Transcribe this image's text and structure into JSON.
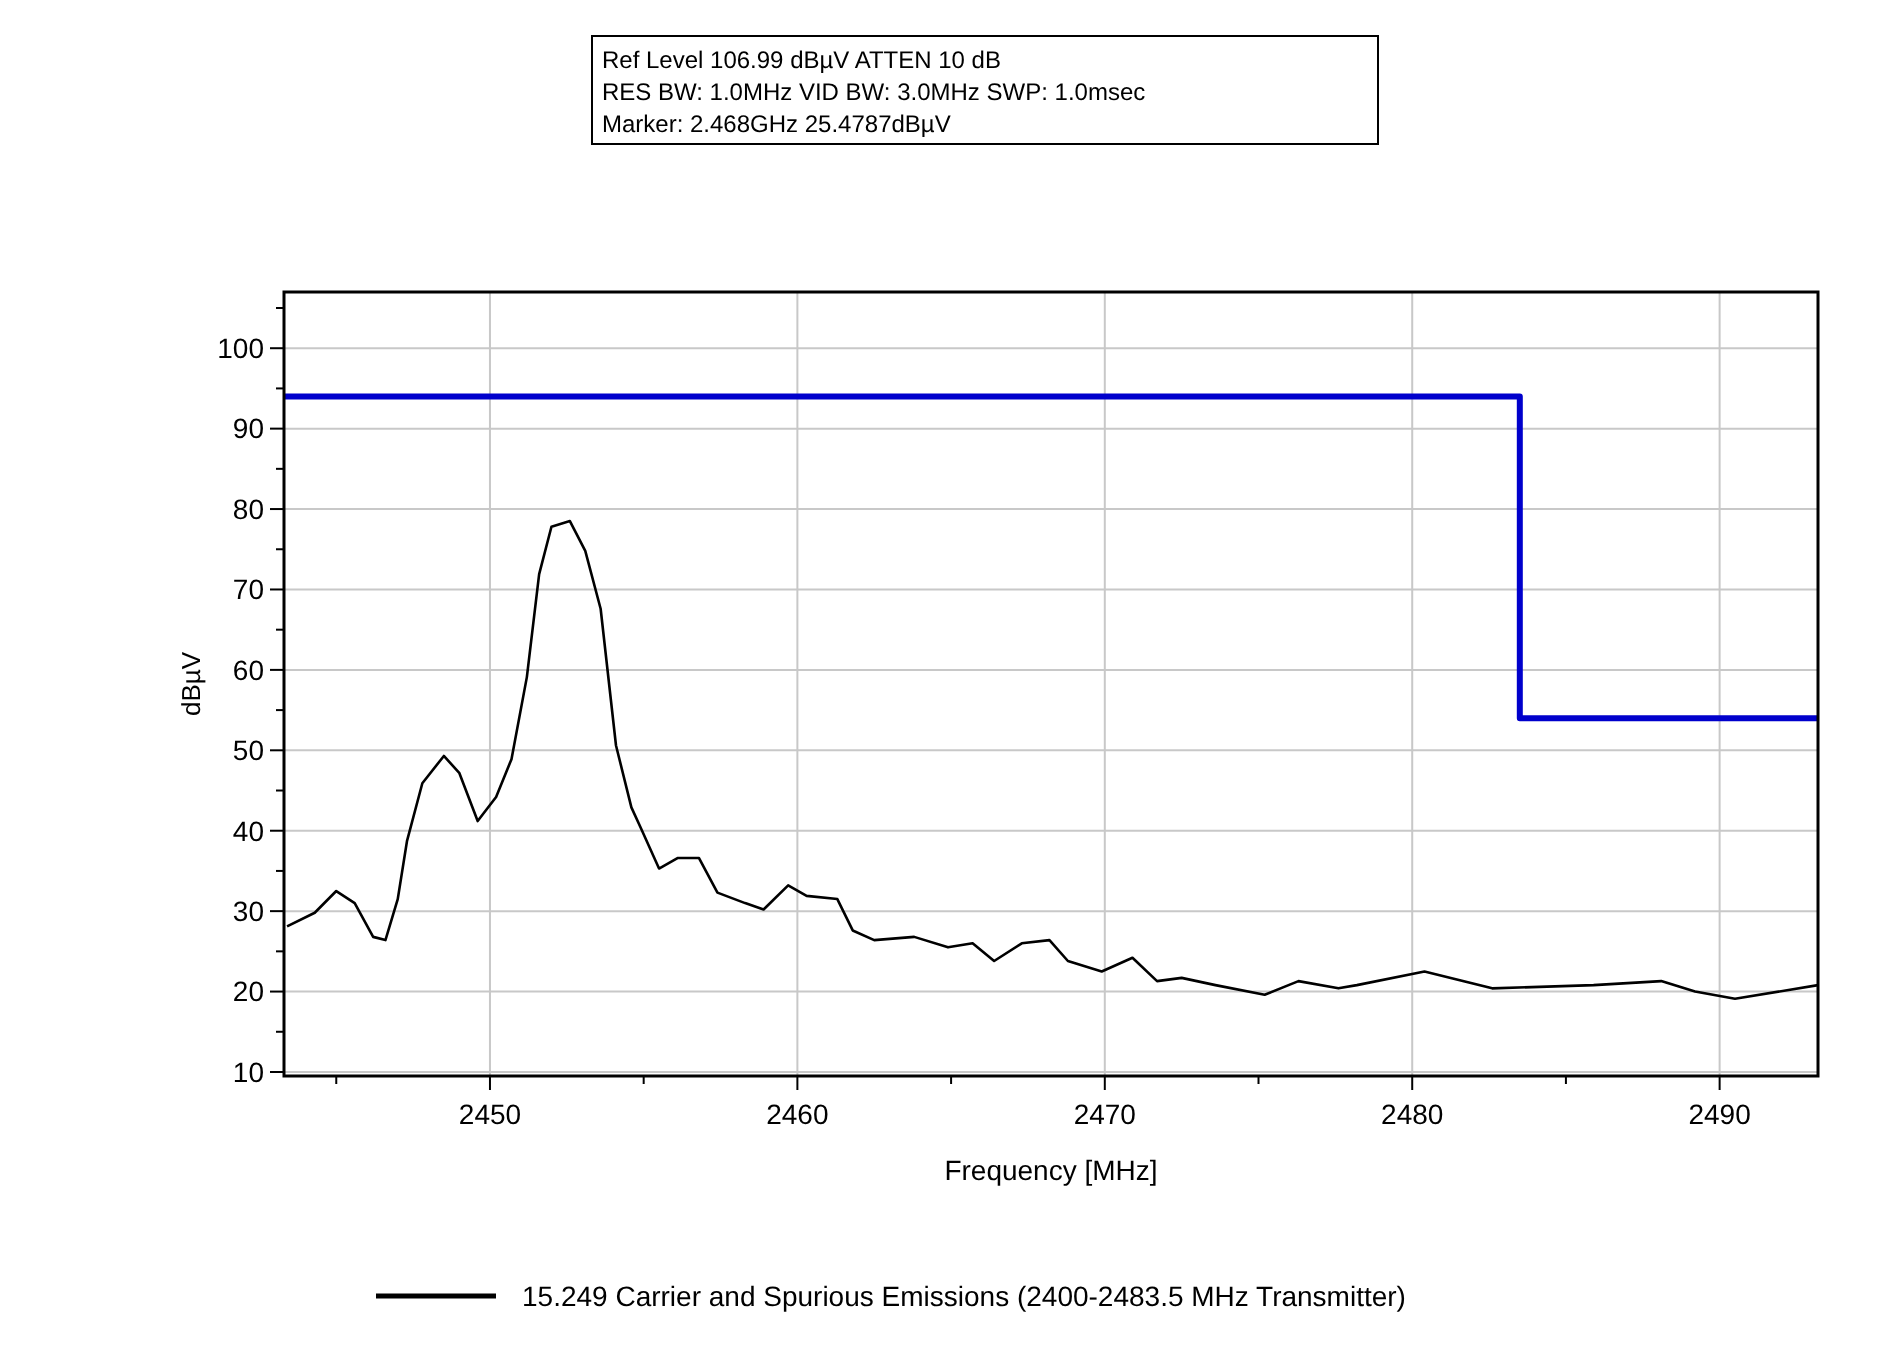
{
  "chart_data": {
    "type": "line",
    "xlabel": "Frequency [MHz]",
    "ylabel": "dBµV",
    "annotations": [
      "Ref Level 106.99 dBµV    ATTEN 10 dB",
      "RES BW: 1.0MHz  VID BW: 3.0MHz  SWP: 1.0msec",
      "Marker: 2.468GHz  25.4787dBµV"
    ],
    "xlim": [
      2443.3,
      2493.2
    ],
    "ylim": [
      9.5,
      106.99
    ],
    "xticks": [
      {
        "value": 2445,
        "label": null
      },
      2450,
      {
        "value": 2455,
        "label": null
      },
      2460,
      {
        "value": 2465,
        "label": null
      },
      2470,
      {
        "value": 2475,
        "label": null
      },
      2480,
      {
        "value": 2485,
        "label": null
      },
      2490
    ],
    "yticks": [
      10,
      {
        "value": 15,
        "label": null
      },
      20,
      {
        "value": 25,
        "label": null
      },
      30,
      {
        "value": 35,
        "label": null
      },
      40,
      {
        "value": 45,
        "label": null
      },
      50,
      {
        "value": 55,
        "label": null
      },
      60,
      {
        "value": 65,
        "label": null
      },
      70,
      {
        "value": 75,
        "label": null
      },
      80,
      {
        "value": 85,
        "label": null
      },
      90,
      {
        "value": 95,
        "label": null
      },
      100,
      {
        "value": 105,
        "label": null
      }
    ],
    "grid": true,
    "legend": "bottom",
    "line_style": "solid",
    "series": [
      {
        "name": "15.249 Carrier and Spurious Emissions (2400-2483.5 MHz Transmitter)",
        "color": "#000000",
        "x": [
          2443.4,
          2444.3,
          2445.0,
          2445.6,
          2446.2,
          2446.6,
          2447.0,
          2447.3,
          2447.8,
          2448.5,
          2449.0,
          2449.6,
          2450.2,
          2450.7,
          2451.2,
          2451.6,
          2452.0,
          2452.6,
          2453.1,
          2453.6,
          2454.1,
          2454.6,
          2454.9,
          2455.5,
          2456.1,
          2456.8,
          2457.4,
          2458.3,
          2458.9,
          2459.7,
          2460.3,
          2461.3,
          2461.8,
          2462.5,
          2463.8,
          2464.9,
          2465.7,
          2466.4,
          2467.3,
          2468.2,
          2468.8,
          2469.9,
          2470.9,
          2471.7,
          2472.5,
          2473.6,
          2475.2,
          2476.3,
          2477.6,
          2478.2,
          2480.4,
          2482.6,
          2485.9,
          2488.1,
          2489.2,
          2490.5,
          2493.2
        ],
        "values": [
          28.1,
          29.8,
          32.5,
          31.0,
          26.8,
          26.4,
          31.5,
          38.7,
          45.9,
          49.3,
          47.2,
          41.2,
          44.2,
          48.9,
          59.1,
          71.9,
          77.8,
          78.5,
          74.8,
          67.6,
          50.6,
          42.9,
          40.4,
          35.3,
          36.6,
          36.6,
          32.3,
          31.0,
          30.2,
          33.2,
          31.9,
          31.5,
          27.6,
          26.4,
          26.8,
          25.5,
          26.0,
          23.8,
          26.0,
          26.4,
          23.8,
          22.5,
          24.2,
          21.3,
          21.7,
          20.8,
          19.6,
          21.3,
          20.4,
          20.8,
          22.5,
          20.4,
          20.8,
          21.3,
          20.0,
          19.1,
          20.8
        ]
      },
      {
        "color": "#0000cc",
        "x": [
          2443.3,
          2483.5,
          2483.5,
          2493.2
        ],
        "values": [
          94,
          94,
          54,
          54
        ]
      }
    ]
  }
}
